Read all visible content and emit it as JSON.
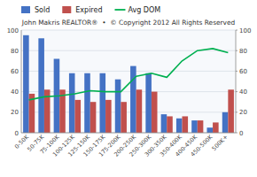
{
  "chart_data": {
    "type": "bar",
    "title": "John Makris REALTOR®  •  © Copyright 2012 All Rights Reserved",
    "categories": [
      "0-50K",
      "50-75K",
      "75-100K",
      "100-125K",
      "125-150K",
      "150-175K",
      "175-200K",
      "200-250K",
      "250-300K",
      "300-350K",
      "350-400K",
      "400-450K",
      "450-500K",
      "500K+"
    ],
    "series": [
      {
        "name": "Sold",
        "color": "#4472C4",
        "values": [
          95,
          92,
          72,
          58,
          58,
          58,
          52,
          65,
          58,
          18,
          14,
          12,
          5,
          20
        ]
      },
      {
        "name": "Expired",
        "color": "#C0504D",
        "values": [
          38,
          42,
          42,
          32,
          30,
          32,
          30,
          42,
          40,
          16,
          16,
          12,
          10,
          42
        ]
      },
      {
        "name": "Avg DOM",
        "type": "line",
        "axis": "y2",
        "color": "#00B050",
        "values": [
          32,
          35,
          36,
          38,
          41,
          40,
          40,
          55,
          58,
          54,
          70,
          80,
          82,
          78
        ]
      }
    ],
    "ylim": [
      0,
      100
    ],
    "yticks": [
      0,
      20,
      40,
      60,
      80,
      100
    ],
    "y2lim": [
      0,
      100
    ],
    "y2ticks": [
      0,
      20,
      40,
      60,
      80,
      100
    ],
    "grid": true,
    "legend": "top"
  }
}
